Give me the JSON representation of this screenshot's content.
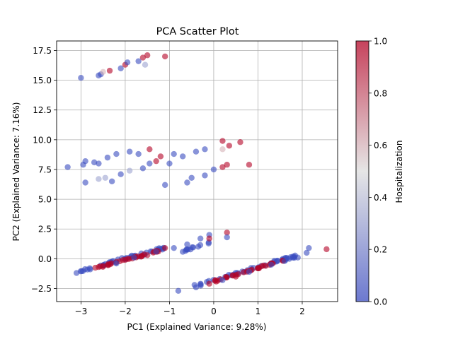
{
  "chart_data": {
    "type": "scatter",
    "title": "PCA Scatter Plot",
    "xlabel": "PC1 (Explained Variance: 9.28%)",
    "ylabel": "PC2 (Explained Variance: 7.16%)",
    "xlim": [
      -3.55,
      2.8
    ],
    "ylim": [
      -3.6,
      18.3
    ],
    "xticks": [
      -3,
      -2,
      -1,
      0,
      1,
      2
    ],
    "xtick_labels": [
      "−3",
      "−2",
      "−1",
      "0",
      "1",
      "2"
    ],
    "yticks": [
      -2.5,
      0.0,
      2.5,
      5.0,
      7.5,
      10.0,
      12.5,
      15.0,
      17.5
    ],
    "ytick_labels": [
      "−2.5",
      "0.0",
      "2.5",
      "5.0",
      "7.5",
      "10.0",
      "12.5",
      "15.0",
      "17.5"
    ],
    "grid": true,
    "colorbar": {
      "label": "Hospitalization",
      "range": [
        0.0,
        1.0
      ],
      "ticks": [
        0.0,
        0.2,
        0.4,
        0.6,
        0.8,
        1.0
      ],
      "tick_labels": [
        "0.0",
        "0.2",
        "0.4",
        "0.6",
        "0.8",
        "1.0"
      ],
      "colormap": "coolwarm",
      "low_color": "#3b4cc0",
      "mid_color": "#dddddd",
      "high_color": "#b40426"
    },
    "points": [
      {
        "x": -3.0,
        "y": 15.2,
        "c": 0.0
      },
      {
        "x": -2.6,
        "y": 15.4,
        "c": 0.0
      },
      {
        "x": -2.55,
        "y": 15.5,
        "c": 0.0
      },
      {
        "x": -2.5,
        "y": 15.7,
        "c": 0.6
      },
      {
        "x": -2.35,
        "y": 15.8,
        "c": 1.0
      },
      {
        "x": -2.1,
        "y": 16.0,
        "c": 0.0
      },
      {
        "x": -2.0,
        "y": 16.3,
        "c": 1.0
      },
      {
        "x": -1.95,
        "y": 16.5,
        "c": 0.0
      },
      {
        "x": -1.7,
        "y": 16.6,
        "c": 0.0
      },
      {
        "x": -1.6,
        "y": 16.9,
        "c": 1.0
      },
      {
        "x": -1.5,
        "y": 17.1,
        "c": 1.0
      },
      {
        "x": -1.55,
        "y": 16.3,
        "c": 0.3
      },
      {
        "x": -1.1,
        "y": 17.0,
        "c": 1.0
      },
      {
        "x": -3.3,
        "y": 7.7,
        "c": 0.0
      },
      {
        "x": -2.95,
        "y": 7.9,
        "c": 0.0
      },
      {
        "x": -2.9,
        "y": 8.2,
        "c": 0.0
      },
      {
        "x": -2.7,
        "y": 8.1,
        "c": 0.0
      },
      {
        "x": -2.6,
        "y": 8.0,
        "c": 0.0
      },
      {
        "x": -2.4,
        "y": 8.5,
        "c": 0.0
      },
      {
        "x": -2.2,
        "y": 8.8,
        "c": 0.0
      },
      {
        "x": -1.9,
        "y": 9.0,
        "c": 0.0
      },
      {
        "x": -1.7,
        "y": 8.8,
        "c": 0.0
      },
      {
        "x": -1.45,
        "y": 9.2,
        "c": 1.0
      },
      {
        "x": -1.2,
        "y": 8.6,
        "c": 1.0
      },
      {
        "x": -0.9,
        "y": 8.8,
        "c": 0.0
      },
      {
        "x": -0.7,
        "y": 8.6,
        "c": 0.0
      },
      {
        "x": -0.4,
        "y": 9.0,
        "c": 0.0
      },
      {
        "x": -0.2,
        "y": 9.2,
        "c": 0.0
      },
      {
        "x": 0.2,
        "y": 9.9,
        "c": 1.0
      },
      {
        "x": 0.2,
        "y": 9.2,
        "c": 0.6
      },
      {
        "x": 0.35,
        "y": 9.5,
        "c": 1.0
      },
      {
        "x": 0.6,
        "y": 9.8,
        "c": 1.0
      },
      {
        "x": -2.9,
        "y": 6.4,
        "c": 0.0
      },
      {
        "x": -2.6,
        "y": 6.7,
        "c": 0.3
      },
      {
        "x": -2.45,
        "y": 6.8,
        "c": 0.3
      },
      {
        "x": -2.3,
        "y": 6.5,
        "c": 0.0
      },
      {
        "x": -2.1,
        "y": 7.1,
        "c": 0.0
      },
      {
        "x": -1.9,
        "y": 7.4,
        "c": 0.3
      },
      {
        "x": -1.6,
        "y": 7.6,
        "c": 0.0
      },
      {
        "x": -1.45,
        "y": 8.0,
        "c": 0.0
      },
      {
        "x": -1.3,
        "y": 8.2,
        "c": 1.0
      },
      {
        "x": -1.1,
        "y": 6.2,
        "c": 0.0
      },
      {
        "x": -1.0,
        "y": 8.0,
        "c": 0.0
      },
      {
        "x": -0.6,
        "y": 6.4,
        "c": 0.0
      },
      {
        "x": -0.5,
        "y": 6.8,
        "c": 0.0
      },
      {
        "x": -0.2,
        "y": 7.0,
        "c": 0.0
      },
      {
        "x": 0.0,
        "y": 7.5,
        "c": 0.0
      },
      {
        "x": 0.2,
        "y": 7.7,
        "c": 1.0
      },
      {
        "x": 0.3,
        "y": 7.9,
        "c": 1.0
      },
      {
        "x": 0.8,
        "y": 7.9,
        "c": 1.0
      },
      {
        "x": -3.1,
        "y": -1.2,
        "c": 0.0
      },
      {
        "x": -2.8,
        "y": -0.8,
        "c": 0.0
      },
      {
        "x": -2.5,
        "y": -0.6,
        "c": 1.0
      },
      {
        "x": -2.2,
        "y": -0.4,
        "c": 0.0
      },
      {
        "x": -2.0,
        "y": -0.1,
        "c": 1.0
      },
      {
        "x": -1.8,
        "y": 0.1,
        "c": 0.0
      },
      {
        "x": -1.5,
        "y": 0.3,
        "c": 1.0
      },
      {
        "x": -1.3,
        "y": 0.6,
        "c": 0.0
      },
      {
        "x": -1.1,
        "y": 0.9,
        "c": 1.0
      },
      {
        "x": -0.9,
        "y": 0.9,
        "c": 0.0
      },
      {
        "x": -0.6,
        "y": 1.2,
        "c": 0.0
      },
      {
        "x": -0.3,
        "y": 1.7,
        "c": 0.0
      },
      {
        "x": -0.1,
        "y": 2.0,
        "c": 0.0
      },
      {
        "x": -0.1,
        "y": 1.7,
        "c": 1.0
      },
      {
        "x": 0.3,
        "y": 2.2,
        "c": 1.0
      },
      {
        "x": 0.3,
        "y": 1.8,
        "c": 0.0
      },
      {
        "x": -0.8,
        "y": -2.7,
        "c": 0.0
      },
      {
        "x": -0.4,
        "y": -2.4,
        "c": 0.0
      },
      {
        "x": -0.1,
        "y": -2.1,
        "c": 1.0
      },
      {
        "x": 0.2,
        "y": -1.8,
        "c": 0.0
      },
      {
        "x": 0.5,
        "y": -1.5,
        "c": 1.0
      },
      {
        "x": 0.8,
        "y": -1.1,
        "c": 0.0
      },
      {
        "x": 1.0,
        "y": -0.8,
        "c": 1.0
      },
      {
        "x": 1.3,
        "y": -0.5,
        "c": 0.0
      },
      {
        "x": 1.6,
        "y": -0.2,
        "c": 0.0
      },
      {
        "x": 1.9,
        "y": 0.1,
        "c": 0.0
      },
      {
        "x": 2.1,
        "y": 0.5,
        "c": 0.0
      },
      {
        "x": 2.15,
        "y": 0.9,
        "c": 0.0
      },
      {
        "x": 2.55,
        "y": 0.8,
        "c": 1.0
      }
    ],
    "streaks": [
      {
        "x0": -3.0,
        "y0": -1.0,
        "x1": -1.0,
        "y1": 1.0,
        "c": 0.0,
        "n": 42,
        "jitter": 0.18
      },
      {
        "x0": -2.7,
        "y0": -0.8,
        "x1": -1.2,
        "y1": 0.7,
        "c": 1.0,
        "n": 28,
        "jitter": 0.12
      },
      {
        "x0": -0.7,
        "y0": 0.6,
        "x1": 0.2,
        "y1": 1.8,
        "c": 0.0,
        "n": 12,
        "jitter": 0.15
      },
      {
        "x0": -0.6,
        "y0": -2.5,
        "x1": 1.9,
        "y1": 0.3,
        "c": 0.0,
        "n": 48,
        "jitter": 0.18
      },
      {
        "x0": 0.0,
        "y0": -1.9,
        "x1": 1.6,
        "y1": -0.1,
        "c": 1.0,
        "n": 30,
        "jitter": 0.13
      }
    ]
  }
}
